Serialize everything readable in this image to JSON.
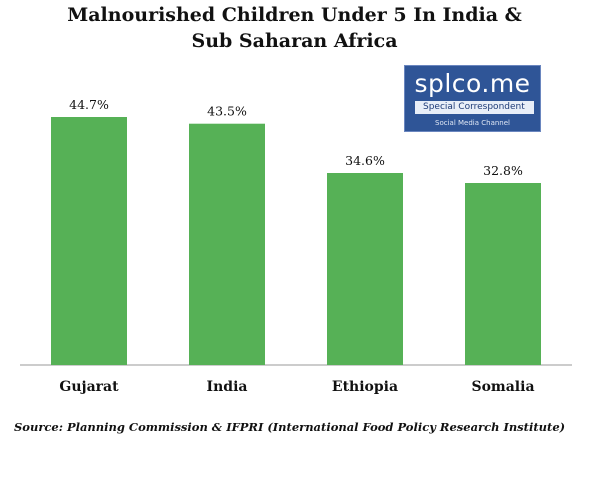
{
  "chart_data": {
    "type": "bar",
    "title": "Malnourished Children Under 5 In India & Sub Saharan Africa",
    "title_lines": [
      "Malnourished Children Under 5 In India &",
      "Sub Saharan Africa"
    ],
    "categories": [
      "Gujarat",
      "India",
      "Ethiopia",
      "Somalia"
    ],
    "values": [
      44.7,
      43.5,
      34.6,
      32.8
    ],
    "data_labels": [
      "44.7%",
      "43.5%",
      "34.6%",
      "32.8%"
    ],
    "xlabel": "",
    "ylabel": "",
    "ylim": [
      0,
      45
    ],
    "grid": false,
    "legend": "none",
    "bar_color": "#56b156",
    "axis_color": "#999999"
  },
  "source": "Source: Planning Commission & IFPRI (International Food Policy Research Institute)",
  "logo": {
    "name": "splco.me",
    "subtitle": "Special Correspondent",
    "tagline": "Social Media Channel",
    "background": "#2f5597"
  }
}
